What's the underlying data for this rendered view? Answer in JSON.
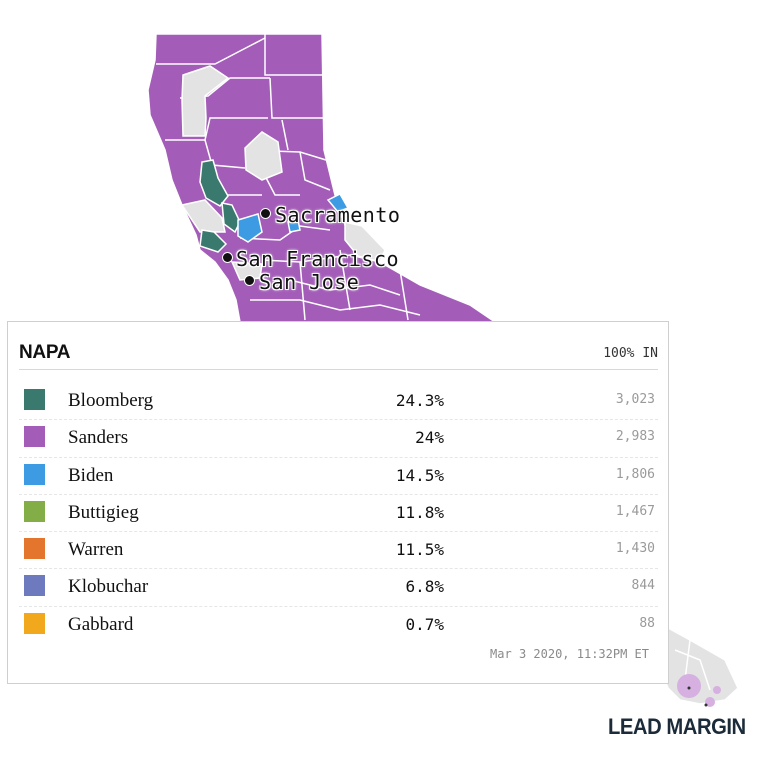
{
  "map": {
    "colors": {
      "sanders": "#a35db8",
      "bloomberg": "#3a7a6e",
      "biden": "#3c9be3",
      "no_data": "#e3e3e3"
    },
    "cities": [
      {
        "name": "Sacramento"
      },
      {
        "name": "San Francisco"
      },
      {
        "name": "San Jose"
      }
    ]
  },
  "tooltip": {
    "county": "NAPA",
    "reporting": "100% IN",
    "timestamp": "Mar 3 2020, 11:32PM ET",
    "rows": [
      {
        "candidate": "Bloomberg",
        "pct": "24.3%",
        "votes": "3,023",
        "color": "#3a7a6e"
      },
      {
        "candidate": "Sanders",
        "pct": "24%",
        "votes": "2,983",
        "color": "#a35db8"
      },
      {
        "candidate": "Biden",
        "pct": "14.5%",
        "votes": "1,806",
        "color": "#3c9be3"
      },
      {
        "candidate": "Buttigieg",
        "pct": "11.8%",
        "votes": "1,467",
        "color": "#82ad47"
      },
      {
        "candidate": "Warren",
        "pct": "11.5%",
        "votes": "1,430",
        "color": "#e3762c"
      },
      {
        "candidate": "Klobuchar",
        "pct": "6.8%",
        "votes": "844",
        "color": "#6d7abd"
      },
      {
        "candidate": "Gabbard",
        "pct": "0.7%",
        "votes": "88",
        "color": "#f2a81d"
      }
    ]
  },
  "legend": {
    "title": "LEAD MARGIN"
  }
}
